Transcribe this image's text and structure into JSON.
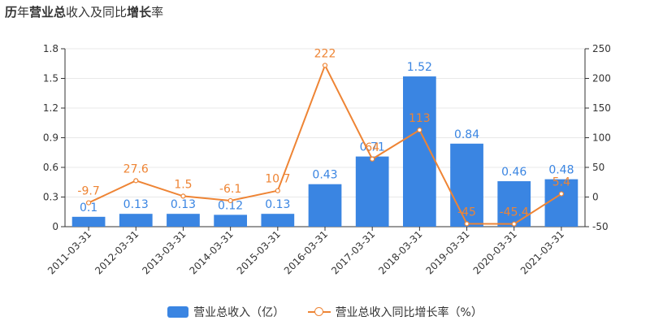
{
  "title": {
    "bold_a": "历",
    "normal_a": "年",
    "bold_b": "营业总",
    "normal_b": "收入及同比",
    "bold_c": "增长",
    "normal_c": "率"
  },
  "colors": {
    "bar": "#3a85e2",
    "line": "#ee8434",
    "axis": "#333333",
    "grid": "#e8e8e8"
  },
  "legend": {
    "bar_label": "营业总收入（亿）",
    "line_label": "营业总收入同比增长率（%）"
  },
  "chart_data": {
    "type": "bar+line",
    "categories": [
      "2011-03-31",
      "2012-03-31",
      "2013-03-31",
      "2014-03-31",
      "2015-03-31",
      "2016-03-31",
      "2017-03-31",
      "2018-03-31",
      "2019-03-31",
      "2020-03-31",
      "2021-03-31"
    ],
    "series": [
      {
        "name": "营业总收入（亿）",
        "kind": "bar",
        "axis": "left",
        "values": [
          0.1,
          0.13,
          0.13,
          0.12,
          0.13,
          0.43,
          0.71,
          1.52,
          0.84,
          0.46,
          0.48
        ],
        "labels": [
          "0.1",
          "0.13",
          "0.13",
          "0.12",
          "0.13",
          "0.43",
          "0.71",
          "1.52",
          "0.84",
          "0.46",
          "0.48"
        ]
      },
      {
        "name": "营业总收入同比增长率（%）",
        "kind": "line",
        "axis": "right",
        "values": [
          -9.7,
          27.6,
          1.5,
          -6.1,
          10.7,
          222,
          64,
          113,
          -45,
          -45.4,
          5.4
        ],
        "labels": [
          "-9.7",
          "27.6",
          "1.5",
          "-6.1",
          "10.7",
          "222",
          "64",
          "113",
          "-45",
          "-45.4",
          "5.4"
        ]
      }
    ],
    "y_left": {
      "min": 0,
      "max": 1.8,
      "ticks": [
        0,
        0.3,
        0.6,
        0.9,
        1.2,
        1.5,
        1.8
      ],
      "tick_labels": [
        "0",
        "0.3",
        "0.6",
        "0.9",
        "1.2",
        "1.5",
        "1.8"
      ]
    },
    "y_right": {
      "min": -50,
      "max": 250,
      "ticks": [
        -50,
        0,
        50,
        100,
        150,
        200,
        250
      ],
      "tick_labels": [
        "-50",
        "0",
        "50",
        "100",
        "150",
        "200",
        "250"
      ]
    },
    "legend_position": "bottom"
  }
}
